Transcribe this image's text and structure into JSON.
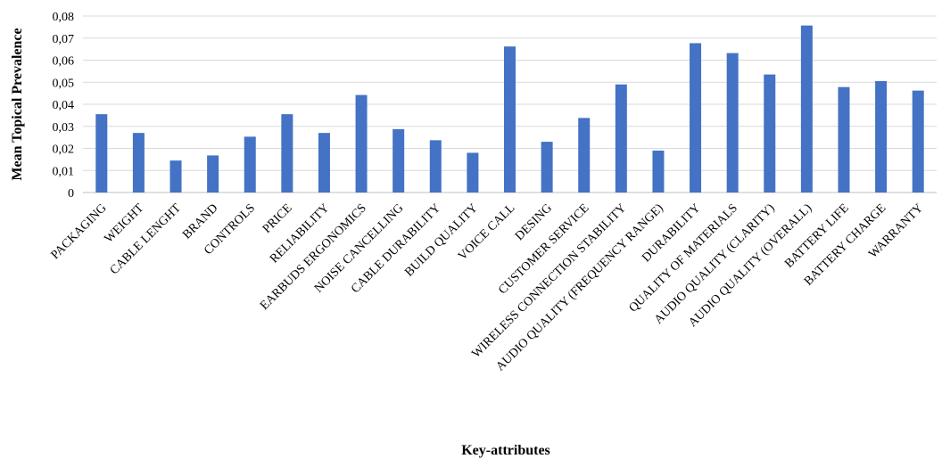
{
  "chart_data": {
    "type": "bar",
    "xlabel": "Key-attributes",
    "ylabel": "Mean Topical Prevalence",
    "ylim": [
      0,
      0.08
    ],
    "yticks": [
      "0",
      "0,01",
      "0,02",
      "0,03",
      "0,04",
      "0,05",
      "0,06",
      "0,07",
      "0,08"
    ],
    "grid": "horizontal",
    "bar_color": "#4472C4",
    "grid_color": "#D9D9D9",
    "categories": [
      "PACKAGING",
      "WEIGHT",
      "CABLE LENGHT",
      "BRAND",
      "CONTROLS",
      "PRICE",
      "RELIABILITY",
      "EARBUDS ERGONOMICS",
      "NOISE CANCELLING",
      "CABLE DURABILITY",
      "BUILD QUALITY",
      "VOICE CALL",
      "DESING",
      "CUSTOMER SERVICE",
      "WIRELESS CONNECTION STABILITY",
      "AUDIO QUALITY (FREQUENCY RANGE)",
      "DURABILITY",
      "QUALITY OF MATERIALS",
      "AUDIO QUALITY (CLARITY)",
      "AUDIO QUALITY (OVERALL)",
      "BATTERY LIFE",
      "BATTERY CHARGE",
      "WARRANTY"
    ],
    "values": [
      0.0355,
      0.027,
      0.0145,
      0.0168,
      0.0253,
      0.0355,
      0.027,
      0.0442,
      0.0287,
      0.0237,
      0.018,
      0.0662,
      0.023,
      0.0338,
      0.049,
      0.019,
      0.0677,
      0.0632,
      0.0535,
      0.0757,
      0.0478,
      0.0505,
      0.0462
    ]
  }
}
